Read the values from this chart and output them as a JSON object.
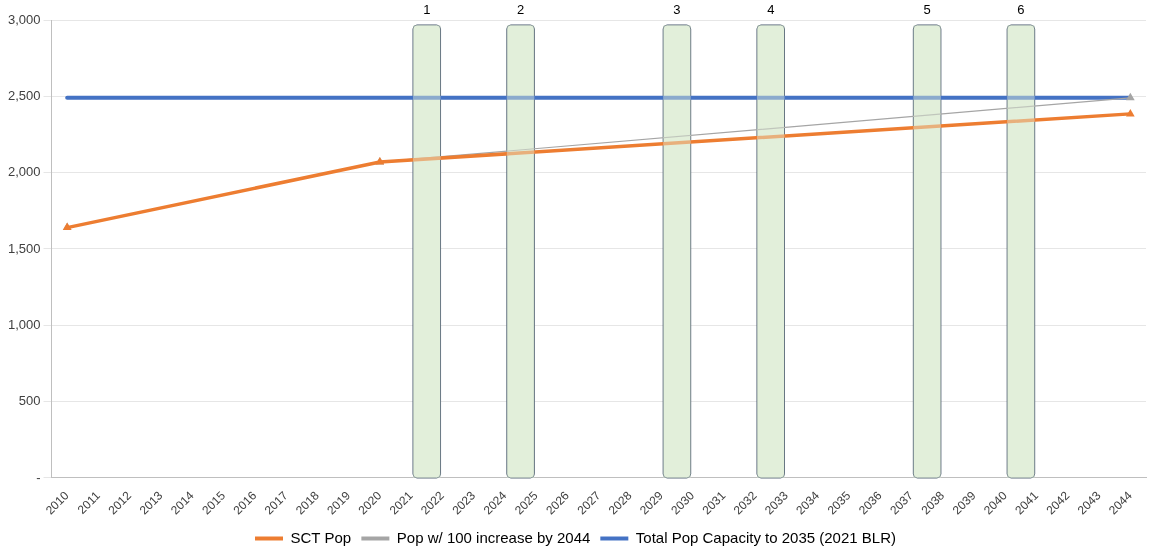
{
  "chart_data": {
    "type": "line",
    "categories": [
      "2010",
      "2011",
      "2012",
      "2013",
      "2014",
      "2015",
      "2016",
      "2017",
      "2018",
      "2019",
      "2020",
      "2021",
      "2022",
      "2023",
      "2024",
      "2025",
      "2026",
      "2027",
      "2028",
      "2029",
      "2030",
      "2031",
      "2032",
      "2033",
      "2034",
      "2035",
      "2036",
      "2037",
      "2038",
      "2039",
      "2040",
      "2041",
      "2042",
      "2043",
      "2044"
    ],
    "series": [
      {
        "name": "Total Pop Capacity to 2035 (2021 BLR)",
        "color": "#4472c4",
        "marker": "none",
        "values": [
          2490,
          null,
          null,
          null,
          null,
          null,
          null,
          null,
          null,
          null,
          null,
          null,
          null,
          null,
          null,
          null,
          null,
          null,
          null,
          null,
          null,
          null,
          null,
          null,
          null,
          null,
          null,
          null,
          null,
          null,
          null,
          null,
          null,
          null,
          2490
        ]
      },
      {
        "name": "Pop w/ 100 increase by 2044",
        "color": "#a5a5a5",
        "marker": "triangle",
        "values": [
          1640,
          null,
          null,
          null,
          null,
          null,
          null,
          null,
          null,
          null,
          2070,
          null,
          null,
          null,
          null,
          null,
          null,
          null,
          null,
          null,
          null,
          null,
          null,
          null,
          null,
          null,
          null,
          null,
          null,
          null,
          null,
          null,
          null,
          null,
          2490
        ]
      },
      {
        "name": "SCT Pop",
        "color": "#ed7d31",
        "marker": "triangle",
        "values": [
          1640,
          null,
          null,
          null,
          null,
          null,
          null,
          null,
          null,
          null,
          2070,
          null,
          null,
          null,
          null,
          null,
          null,
          null,
          null,
          null,
          null,
          null,
          null,
          null,
          null,
          null,
          null,
          null,
          null,
          null,
          null,
          null,
          null,
          null,
          2385
        ]
      }
    ],
    "bands": [
      {
        "axis": "x",
        "from": "2021",
        "to": "2022",
        "label": "1",
        "color": "#e2efda"
      },
      {
        "axis": "x",
        "from": "2024",
        "to": "2025",
        "label": "2",
        "color": "#e2efda"
      },
      {
        "axis": "x",
        "from": "2029",
        "to": "2030",
        "label": "3",
        "color": "#e2efda"
      },
      {
        "axis": "x",
        "from": "2032",
        "to": "2033",
        "label": "4",
        "color": "#e2efda"
      },
      {
        "axis": "x",
        "from": "2037",
        "to": "2038",
        "label": "5",
        "color": "#e2efda"
      },
      {
        "axis": "x",
        "from": "2040",
        "to": "2041",
        "label": "6",
        "color": "#e2efda"
      }
    ],
    "ylim": [
      0,
      3000
    ],
    "yticks": [
      {
        "value": 0,
        "label": "-"
      },
      500,
      {
        "value": 1000,
        "label": "1,000"
      },
      {
        "value": 1500,
        "label": "1,500"
      },
      {
        "value": 2000,
        "label": "2,000"
      },
      {
        "value": 2500,
        "label": "2,500"
      },
      {
        "value": 3000,
        "label": "3,000"
      }
    ],
    "grid": "y",
    "legend": "bottom"
  }
}
